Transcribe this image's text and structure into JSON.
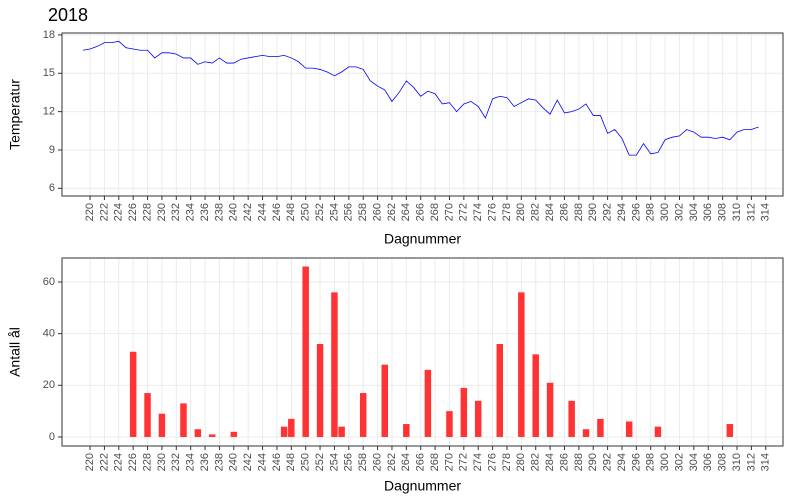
{
  "chart_data": [
    {
      "type": "line",
      "title": "2018",
      "y_label": "Temperatur",
      "x_label": "Dagnummer",
      "color": "#0000ff",
      "grid": true,
      "x": [
        219,
        220,
        221,
        222,
        223,
        224,
        225,
        226,
        227,
        228,
        229,
        230,
        231,
        232,
        233,
        234,
        235,
        236,
        237,
        238,
        239,
        240,
        241,
        242,
        243,
        244,
        245,
        246,
        247,
        248,
        249,
        250,
        251,
        252,
        253,
        254,
        255,
        256,
        257,
        258,
        259,
        260,
        261,
        262,
        263,
        264,
        265,
        266,
        267,
        268,
        269,
        270,
        271,
        272,
        273,
        274,
        275,
        276,
        277,
        278,
        279,
        280,
        281,
        282,
        283,
        284,
        285,
        286,
        287,
        288,
        289,
        290,
        291,
        292,
        293,
        294,
        295,
        296,
        297,
        298,
        299,
        300,
        301,
        302,
        303,
        304,
        305,
        306,
        307,
        308,
        309,
        310,
        311,
        312,
        313
      ],
      "values": [
        16.8,
        16.9,
        17.1,
        17.4,
        17.4,
        17.5,
        17.0,
        16.9,
        16.8,
        16.8,
        16.2,
        16.6,
        16.6,
        16.5,
        16.2,
        16.2,
        15.7,
        15.9,
        15.8,
        16.2,
        15.8,
        15.8,
        16.1,
        16.2,
        16.3,
        16.4,
        16.3,
        16.3,
        16.4,
        16.2,
        15.9,
        15.4,
        15.4,
        15.3,
        15.1,
        14.8,
        15.1,
        15.5,
        15.5,
        15.3,
        14.4,
        14.0,
        13.7,
        12.8,
        13.5,
        14.4,
        13.9,
        13.2,
        13.6,
        13.4,
        12.6,
        12.7,
        12.0,
        12.6,
        12.8,
        12.4,
        11.5,
        13.0,
        13.2,
        13.1,
        12.4,
        12.7,
        13.0,
        12.9,
        12.3,
        11.8,
        12.9,
        11.9,
        12.0,
        12.2,
        12.6,
        11.7,
        11.7,
        10.3,
        10.6,
        9.9,
        8.6,
        8.6,
        9.5,
        8.7,
        8.8,
        9.8,
        10.0,
        10.1,
        10.6,
        10.4,
        10.0,
        10.0,
        9.9,
        10.0,
        9.8,
        10.4,
        10.6,
        10.6,
        10.8
      ],
      "xlim": [
        216.1,
        316.4
      ],
      "ylim": [
        5.4,
        18.15
      ],
      "xticks": [
        220,
        222,
        224,
        226,
        228,
        230,
        232,
        234,
        236,
        238,
        240,
        242,
        244,
        246,
        248,
        250,
        252,
        254,
        256,
        258,
        260,
        262,
        264,
        266,
        268,
        270,
        272,
        274,
        276,
        278,
        280,
        282,
        284,
        286,
        288,
        290,
        292,
        294,
        296,
        298,
        300,
        302,
        304,
        306,
        308,
        310,
        312,
        314
      ],
      "yticks": [
        6,
        9,
        12,
        15,
        18
      ]
    },
    {
      "type": "bar",
      "y_label": "Antall ål",
      "x_label": "Dagnummer",
      "color": "#ff3333",
      "grid": true,
      "x": [
        226,
        228,
        230,
        233,
        235,
        237,
        240,
        247,
        248,
        250,
        252,
        254,
        255,
        258,
        261,
        264,
        267,
        270,
        272,
        274,
        277,
        280,
        282,
        284,
        287,
        289,
        291,
        295,
        299,
        309
      ],
      "values": [
        33,
        17,
        9,
        13,
        3,
        1,
        2,
        4,
        7,
        66,
        36,
        56,
        4,
        17,
        28,
        5,
        26,
        10,
        19,
        14,
        36,
        56,
        32,
        21,
        14,
        3,
        7,
        6,
        4,
        5
      ],
      "xlim": [
        216.1,
        316.4
      ],
      "ylim": [
        -3.5,
        69.3
      ],
      "xticks": [
        220,
        222,
        224,
        226,
        228,
        230,
        232,
        234,
        236,
        238,
        240,
        242,
        244,
        246,
        248,
        250,
        252,
        254,
        256,
        258,
        260,
        262,
        264,
        266,
        268,
        270,
        272,
        274,
        276,
        278,
        280,
        282,
        284,
        286,
        288,
        290,
        292,
        294,
        296,
        298,
        300,
        302,
        304,
        306,
        308,
        310,
        312,
        314
      ],
      "yticks": [
        0,
        20,
        40,
        60
      ]
    }
  ]
}
